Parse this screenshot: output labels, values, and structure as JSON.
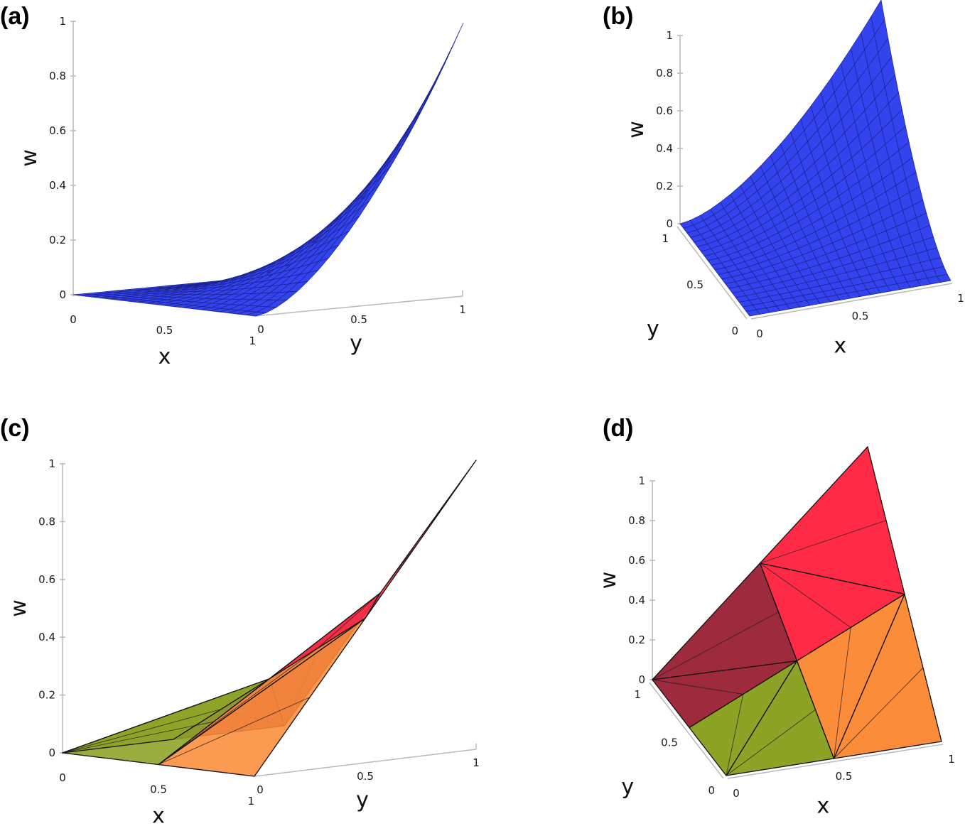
{
  "chart_data": [
    {
      "panel": "(a)",
      "type": "surface",
      "xlabel": "x",
      "ylabel": "y",
      "zlabel": "w",
      "x_ticks": [
        "0",
        "0.5",
        "1"
      ],
      "y_ticks": [
        "0",
        "0.5",
        "1"
      ],
      "z_ticks": [
        "0",
        "0.2",
        "0.4",
        "0.6",
        "0.8",
        "1"
      ],
      "xlim": [
        0,
        1
      ],
      "ylim": [
        0,
        1
      ],
      "zlim": [
        0,
        1
      ],
      "color": "#3344ee",
      "grid_resolution": 20
    },
    {
      "panel": "(b)",
      "type": "surface",
      "xlabel": "x",
      "ylabel": "y",
      "zlabel": "w",
      "x_ticks": [
        "0",
        "0.5",
        "1"
      ],
      "y_ticks": [
        "0",
        "0.5",
        "1"
      ],
      "z_ticks": [
        "0",
        "0.2",
        "0.4",
        "0.6",
        "0.8",
        "1"
      ],
      "xlim": [
        0,
        1
      ],
      "ylim": [
        0,
        1
      ],
      "zlim": [
        0,
        1
      ],
      "color": "#3344ee",
      "grid_resolution": 20
    },
    {
      "panel": "(c)",
      "type": "piecewise-linear-surface",
      "xlabel": "x",
      "ylabel": "y",
      "zlabel": "w",
      "x_ticks": [
        "0",
        "0.5",
        "1"
      ],
      "y_ticks": [
        "0",
        "0.5",
        "1"
      ],
      "z_ticks": [
        "0",
        "0.2",
        "0.4",
        "0.6",
        "0.8",
        "1"
      ],
      "xlim": [
        0,
        1
      ],
      "ylim": [
        0,
        1
      ],
      "zlim": [
        0,
        1
      ],
      "region_colors": {
        "x_near_0": "#8ca325",
        "y_near_1": "#9e2a3d",
        "x_near_1": "#fb8c39",
        "center_top": "#ff2a45"
      }
    },
    {
      "panel": "(d)",
      "type": "piecewise-linear-surface",
      "xlabel": "x",
      "ylabel": "y",
      "zlabel": "w",
      "x_ticks": [
        "0",
        "0.5",
        "1"
      ],
      "y_ticks": [
        "0",
        "0.5",
        "1"
      ],
      "z_ticks": [
        "0",
        "0.2",
        "0.4",
        "0.6",
        "0.8",
        "1"
      ],
      "xlim": [
        0,
        1
      ],
      "ylim": [
        0,
        1
      ],
      "zlim": [
        0,
        1
      ],
      "region_colors": {
        "x_near_0": "#8ca325",
        "y_near_1": "#9e2a3d",
        "x_near_1": "#fb8c39",
        "center_top": "#ff2a45"
      }
    }
  ]
}
